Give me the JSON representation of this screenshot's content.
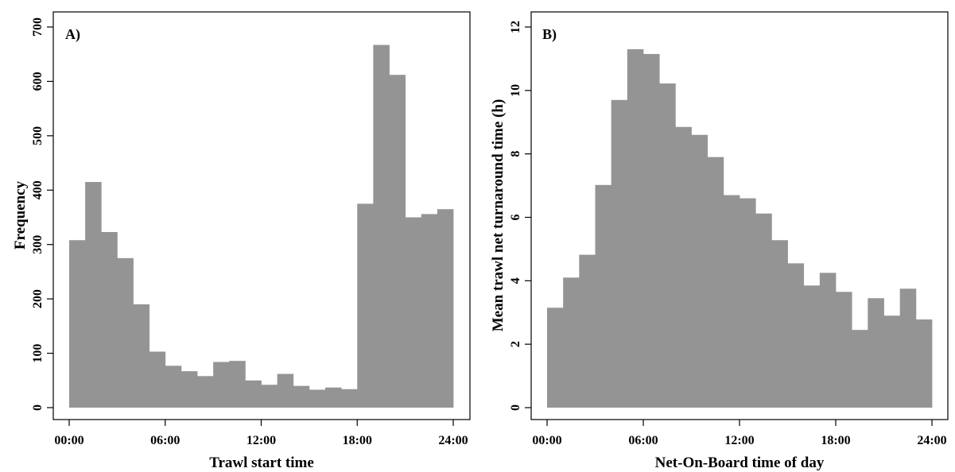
{
  "chart_data": [
    {
      "type": "bar",
      "panel_label": "A)",
      "xlabel": "Trawl start time",
      "ylabel": "Frequency",
      "x_ticks": [
        "00:00",
        "06:00",
        "12:00",
        "18:00",
        "24:00"
      ],
      "x_tick_hours": [
        0,
        6,
        12,
        18,
        24
      ],
      "y_ticks": [
        "0",
        "100",
        "200",
        "300",
        "400",
        "500",
        "600",
        "700"
      ],
      "y_tick_values": [
        0,
        100,
        200,
        300,
        400,
        500,
        600,
        700
      ],
      "xlim": [
        0,
        24
      ],
      "ylim": [
        0,
        700
      ],
      "bar_color": "#949494",
      "bin_width_hours": 1,
      "values": [
        308,
        415,
        323,
        275,
        190,
        103,
        77,
        67,
        58,
        84,
        86,
        50,
        42,
        62,
        40,
        33,
        37,
        34,
        375,
        667,
        612,
        350,
        356,
        365
      ]
    },
    {
      "type": "bar",
      "panel_label": "B)",
      "xlabel": "Net-On-Board time of day",
      "ylabel": "Mean trawl net turnaround time (h)",
      "x_ticks": [
        "00:00",
        "06:00",
        "12:00",
        "18:00",
        "24:00"
      ],
      "x_tick_hours": [
        0,
        6,
        12,
        18,
        24
      ],
      "y_ticks": [
        "0",
        "2",
        "4",
        "6",
        "8",
        "10",
        "12"
      ],
      "y_tick_values": [
        0,
        2,
        4,
        6,
        8,
        10,
        12
      ],
      "xlim": [
        0,
        24
      ],
      "ylim": [
        0,
        12
      ],
      "bar_color": "#949494",
      "bin_width_hours": 1,
      "values": [
        3.15,
        4.1,
        4.82,
        7.02,
        9.7,
        11.3,
        11.15,
        10.22,
        8.85,
        8.6,
        7.9,
        6.7,
        6.6,
        6.12,
        5.28,
        4.55,
        3.85,
        4.25,
        3.65,
        2.45,
        3.45,
        2.9,
        3.75,
        2.78
      ]
    }
  ]
}
